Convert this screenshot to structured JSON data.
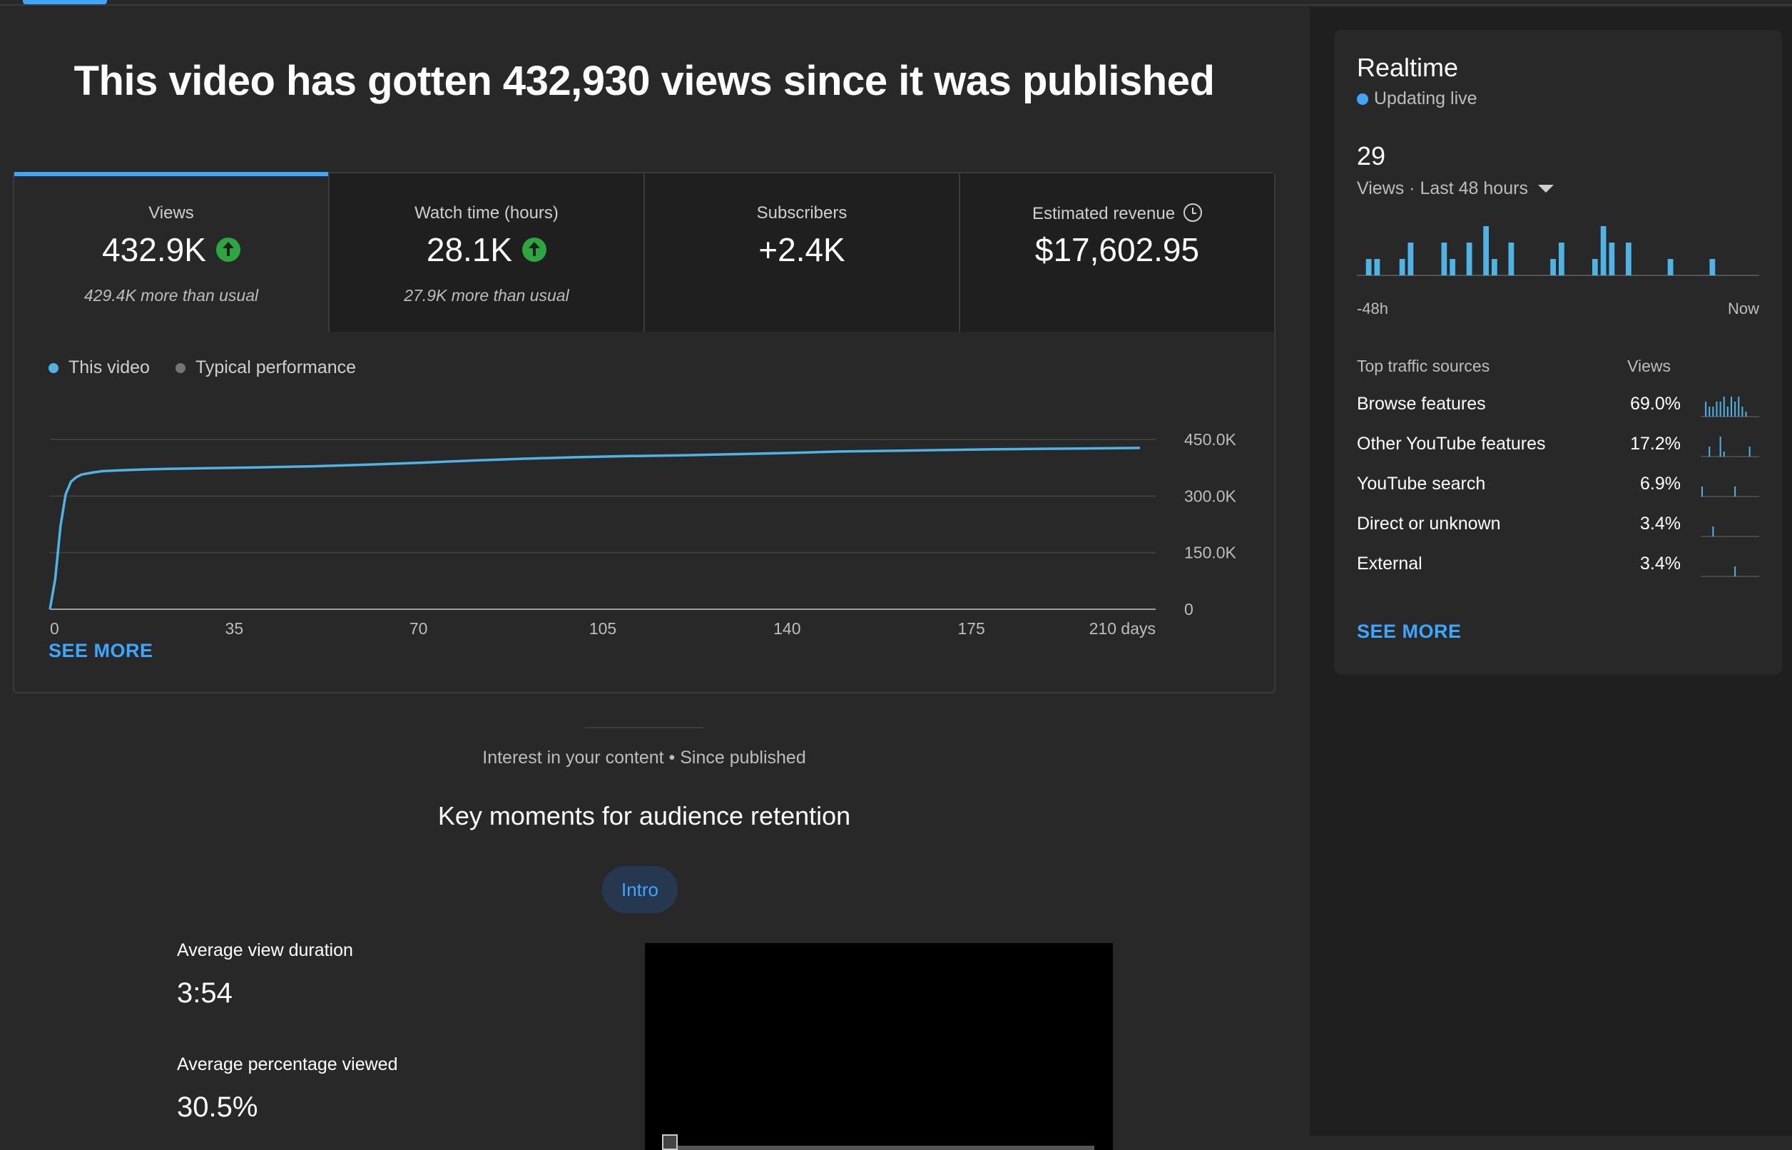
{
  "headline": "This video has gotten 432,930 views since it was published",
  "tabs": [
    {
      "label": "Views",
      "value": "432.9K",
      "sub": "429.4K more than usual",
      "trend": "up"
    },
    {
      "label": "Watch time (hours)",
      "value": "28.1K",
      "sub": "27.9K more than usual",
      "trend": "up"
    },
    {
      "label": "Subscribers",
      "value": "+2.4K",
      "sub": "",
      "trend": "none"
    },
    {
      "label": "Estimated revenue",
      "value": "$17,602.95",
      "sub": "",
      "trend": "none"
    }
  ],
  "legend": {
    "this_video": "This video",
    "typical": "Typical performance"
  },
  "colors": {
    "accent": "#3ea6ff",
    "series": "#4fb3e6",
    "up": "#2ba640",
    "typical": "#757575"
  },
  "chart_data": {
    "type": "line",
    "x_ticks": [
      "0",
      "35",
      "70",
      "105",
      "140",
      "175",
      "210 days"
    ],
    "x_tick_values": [
      0,
      35,
      70,
      105,
      140,
      175,
      210
    ],
    "y_ticks": [
      "450.0K",
      "300.0K",
      "150.0K",
      "0"
    ],
    "y_tick_values": [
      450000,
      300000,
      150000,
      0
    ],
    "xlim": [
      0,
      210
    ],
    "ylim": [
      0,
      450000
    ],
    "series": [
      {
        "name": "This video",
        "x": [
          0,
          1,
          2,
          3,
          4,
          5,
          6,
          8,
          10,
          13,
          17,
          22,
          30,
          40,
          50,
          60,
          70,
          80,
          90,
          100,
          110,
          120,
          130,
          140,
          150,
          160,
          170,
          180,
          190,
          200,
          207
        ],
        "y": [
          0,
          80000,
          220000,
          305000,
          338000,
          350000,
          357000,
          362000,
          366000,
          368000,
          370000,
          372000,
          374000,
          376000,
          379000,
          383000,
          388000,
          394000,
          399000,
          403000,
          406000,
          408000,
          411000,
          414000,
          418000,
          420000,
          422000,
          424000,
          425500,
          426500,
          427500
        ]
      }
    ]
  },
  "see_more": "SEE MORE",
  "interest": "Interest in your content • Since published",
  "key_moments_title": "Key moments for audience retention",
  "chip": "Intro",
  "stats": [
    {
      "label": "Average view duration",
      "value": "3:54"
    },
    {
      "label": "Average percentage viewed",
      "value": "30.5%"
    }
  ],
  "realtime": {
    "title": "Realtime",
    "live": "Updating live",
    "count": "29",
    "period": "Views · Last 48 hours",
    "axis_start": "-48h",
    "axis_end": "Now",
    "bars": [
      0,
      1,
      1,
      0,
      0,
      1,
      2,
      0,
      0,
      0,
      2,
      1,
      0,
      2,
      0,
      3,
      1,
      0,
      2,
      0,
      0,
      0,
      0,
      1,
      2,
      0,
      0,
      0,
      1,
      3,
      2,
      0,
      2,
      0,
      0,
      0,
      0,
      1,
      0,
      0,
      0,
      0,
      1,
      0,
      0,
      0,
      0,
      0
    ]
  },
  "traffic": {
    "header": "Top traffic sources",
    "header_views": "Views",
    "rows": [
      {
        "name": "Browse features",
        "pct": "69.0%",
        "spark": [
          0,
          3,
          2,
          2,
          3,
          3,
          4,
          2,
          4,
          3,
          4,
          2,
          1,
          0,
          0,
          0
        ]
      },
      {
        "name": "Other YouTube features",
        "pct": "17.2%",
        "spark": [
          0,
          0,
          2,
          0,
          0,
          4,
          1,
          0,
          0,
          0,
          0,
          0,
          0,
          2,
          0,
          0
        ]
      },
      {
        "name": "YouTube search",
        "pct": "6.9%",
        "spark": [
          2,
          0,
          0,
          0,
          0,
          0,
          0,
          0,
          0,
          2,
          0,
          0,
          0,
          0,
          0,
          0
        ]
      },
      {
        "name": "Direct or unknown",
        "pct": "3.4%",
        "spark": [
          0,
          0,
          0,
          2,
          0,
          0,
          0,
          0,
          0,
          0,
          0,
          0,
          0,
          0,
          0,
          0
        ]
      },
      {
        "name": "External",
        "pct": "3.4%",
        "spark": [
          0,
          0,
          0,
          0,
          0,
          0,
          0,
          0,
          0,
          2,
          0,
          0,
          0,
          0,
          0,
          0
        ]
      }
    ]
  }
}
